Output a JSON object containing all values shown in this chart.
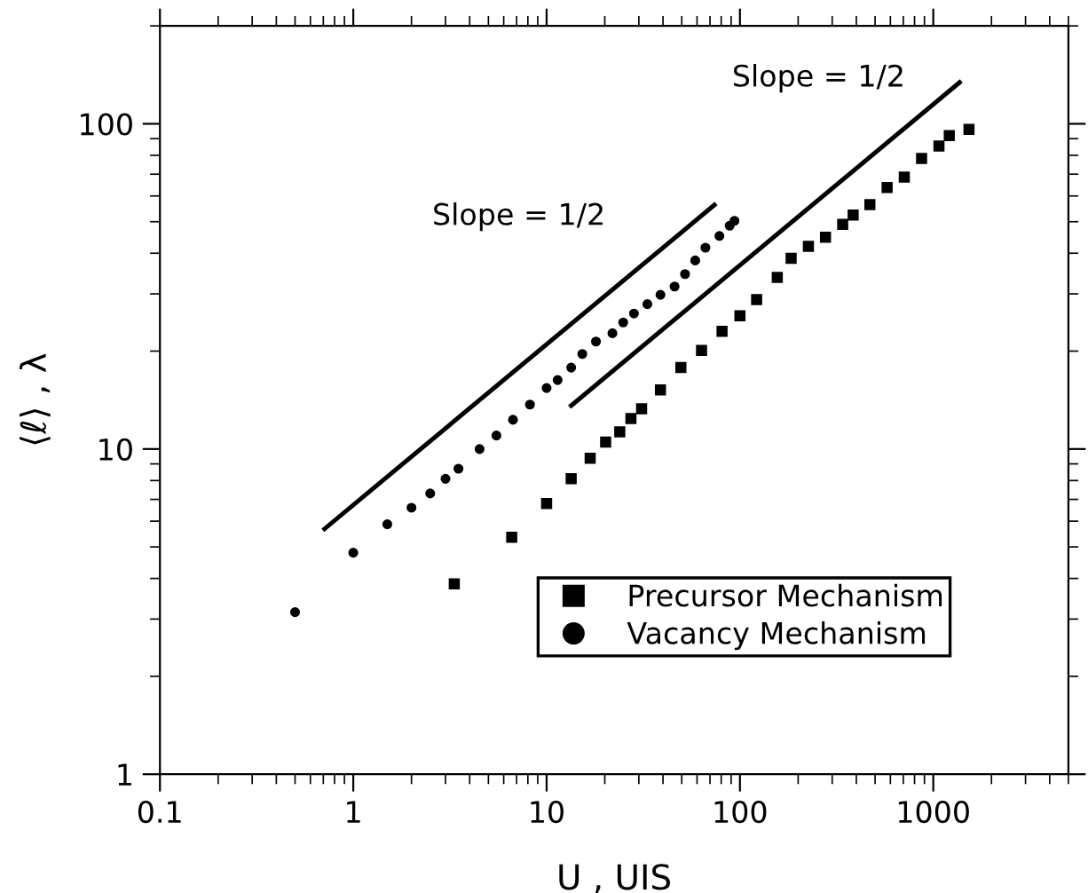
{
  "chart_data": {
    "type": "scatter",
    "xlabel": "U , UIS",
    "ylabel": "⟨ℓ⟩ , λ",
    "log": "xy",
    "xlim": [
      0.1,
      5000
    ],
    "ylim": [
      1,
      200
    ],
    "xticks": [
      0.1,
      1,
      10,
      100,
      1000
    ],
    "yticks": [
      1,
      10,
      100
    ],
    "tick_labels": "xy",
    "grid": false,
    "legend": "lower right",
    "series": [
      {
        "name": "Precursor Mechanism",
        "marker": "square",
        "color": "#000000",
        "x": [
          3.33,
          6.6,
          10,
          13.4,
          16.8,
          20.2,
          23.9,
          27.3,
          31.0,
          38.8,
          49.5,
          63.3,
          80.8,
          100,
          122,
          156,
          184,
          226,
          277,
          340,
          385,
          470,
          577,
          708,
          870,
          1070,
          1210,
          1530
        ],
        "values": [
          3.85,
          5.35,
          6.8,
          8.1,
          9.36,
          10.5,
          11.3,
          12.4,
          13.3,
          15.2,
          17.8,
          20.1,
          23.0,
          25.7,
          28.8,
          33.7,
          38.6,
          42.0,
          44.8,
          49.1,
          52.4,
          56.4,
          63.7,
          68.6,
          78.3,
          85.5,
          92.0,
          96.2
        ]
      },
      {
        "name": "Vacancy Mechanism",
        "marker": "circle",
        "color": "#000000",
        "x": [
          0.5,
          1,
          1.5,
          2,
          2.5,
          3,
          3.5,
          4.5,
          5.5,
          6.7,
          8.2,
          10,
          11.4,
          13.4,
          15.3,
          18.0,
          21.9,
          24.9,
          28.3,
          33.2,
          38.8,
          45.9,
          52,
          58.7,
          66.3,
          78.3,
          88.5,
          93.7
        ],
        "values": [
          3.15,
          4.8,
          5.87,
          6.6,
          7.3,
          8.1,
          8.7,
          10.0,
          11.0,
          12.3,
          13.7,
          15.4,
          16.3,
          17.8,
          19.6,
          21.4,
          22.7,
          24.5,
          26.1,
          27.9,
          29.8,
          31.6,
          34.5,
          38.0,
          41.6,
          45.2,
          48.6,
          50.3
        ]
      },
      {
        "type": "line",
        "color": "#000000",
        "x": [
          0.71,
          73.8
        ],
        "values": [
          5.68,
          56.3
        ]
      },
      {
        "type": "line",
        "color": "#000000",
        "x": [
          13.4,
          1368
        ],
        "values": [
          13.6,
          134
        ]
      }
    ],
    "annotations": [
      "Slope = 1/2",
      "Slope = 1/2"
    ]
  }
}
